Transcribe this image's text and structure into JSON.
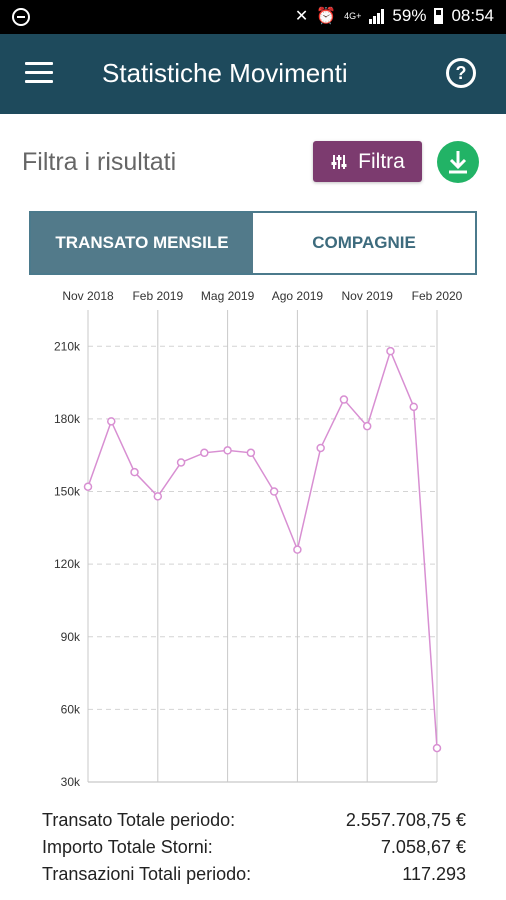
{
  "status_bar": {
    "battery": "59%",
    "time": "08:54",
    "network_label": "4G+"
  },
  "app_bar": {
    "title": "Statistiche Movimenti",
    "menu_icon": "hamburger-menu-icon",
    "help_icon": "help-circle-icon"
  },
  "filter": {
    "label": "Filtra i risultati",
    "button_label": "Filtra",
    "button_icon": "sliders-icon",
    "download_icon": "download-icon"
  },
  "tabs": [
    {
      "label": "TRANSATO MENSILE",
      "active": true
    },
    {
      "label": "COMPAGNIE",
      "active": false
    }
  ],
  "colors": {
    "app_bar": "#1e4a5c",
    "filter_button": "#7c3b6f",
    "download_button": "#22b366",
    "active_tab": "#527a8a",
    "series_line": "#d88fd2"
  },
  "chart_data": {
    "type": "line",
    "title": "",
    "xlabel": "",
    "ylabel": "",
    "x_tick_labels": [
      "Nov 2018",
      "Feb 2019",
      "Mag 2019",
      "Ago 2019",
      "Nov 2019",
      "Feb 2020"
    ],
    "y_tick_labels": [
      "30k",
      "60k",
      "90k",
      "120k",
      "150k",
      "180k",
      "210k"
    ],
    "ylim": [
      30000,
      225000
    ],
    "grid": true,
    "series": [
      {
        "values": [
          152000,
          179000,
          158000,
          148000,
          162000,
          166000,
          167000,
          166000,
          150000,
          126000,
          168000,
          188000,
          177000,
          208000,
          185000,
          44000
        ]
      }
    ]
  },
  "totals": [
    {
      "label": "Transato Totale periodo:",
      "value": "2.557.708,75 €"
    },
    {
      "label": "Importo Totale Storni:",
      "value": "7.058,67 €"
    },
    {
      "label": "Transazioni Totali periodo:",
      "value": "117.293"
    }
  ]
}
